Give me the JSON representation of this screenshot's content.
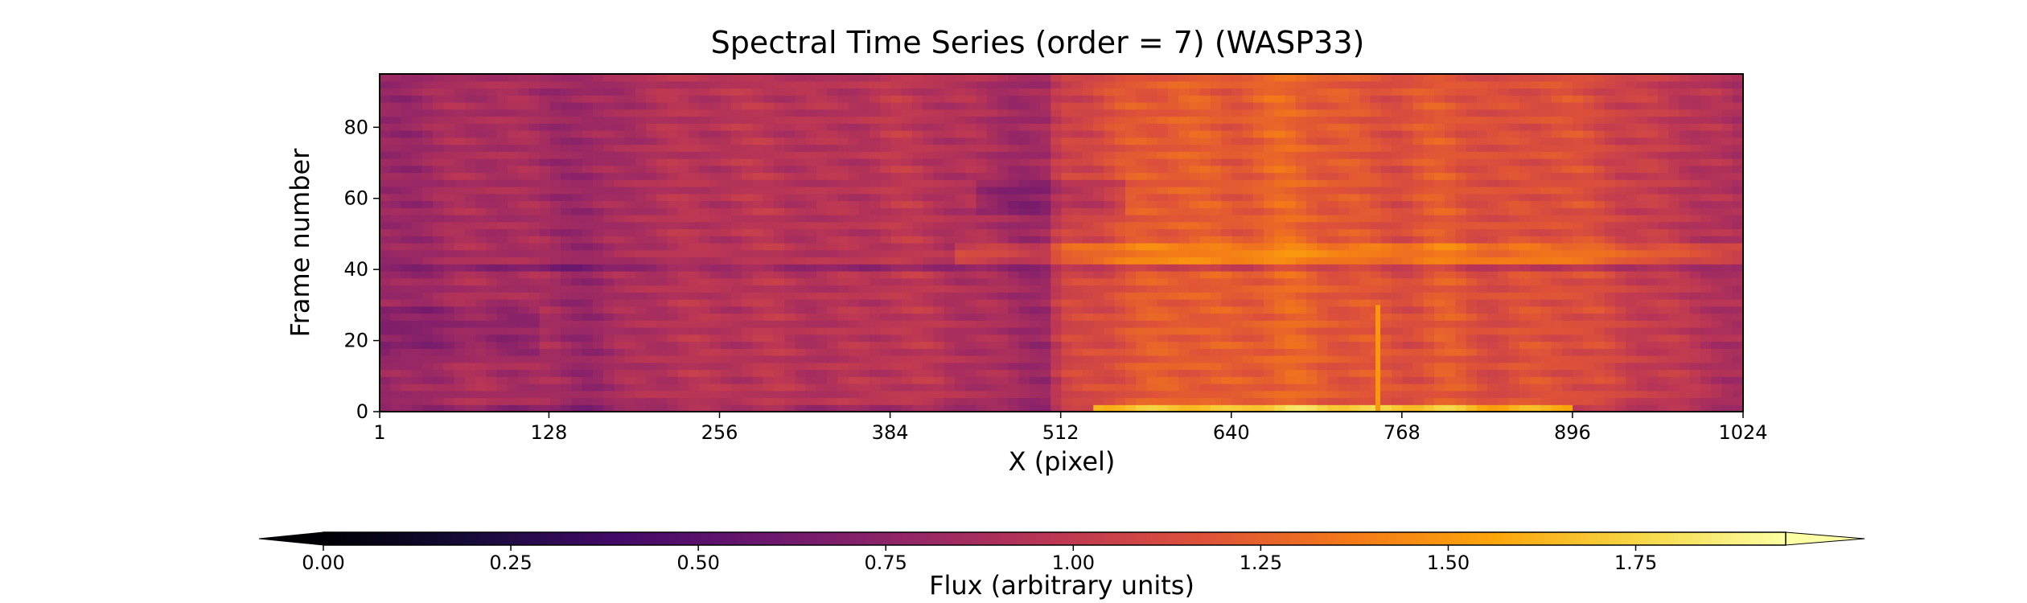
{
  "chart_data": {
    "type": "heatmap",
    "title": "Spectral Time Series (order = 7) (WASP33)",
    "xlabel": "X (pixel)",
    "ylabel": "Frame number",
    "xlim": [
      1,
      1024
    ],
    "ylim": [
      0,
      95
    ],
    "xticks": [
      1,
      128,
      256,
      384,
      512,
      640,
      768,
      896,
      1024
    ],
    "yticks": [
      0,
      20,
      40,
      60,
      80
    ],
    "grid": false,
    "colorbar": {
      "label": "Flux (arbitrary units)",
      "colormap": "inferno",
      "vmin": 0.0,
      "vmax": 1.95,
      "extend": "both",
      "orientation": "horizontal",
      "placement": "bottom",
      "ticks": [
        0.0,
        0.25,
        0.5,
        0.75,
        1.0,
        1.25,
        1.5,
        1.75
      ],
      "tick_labels": [
        "0.00",
        "0.25",
        "0.50",
        "0.75",
        "1.00",
        "1.25",
        "1.50",
        "1.75"
      ]
    },
    "column_profile": {
      "x": [
        1,
        40,
        80,
        120,
        160,
        200,
        256,
        300,
        340,
        384,
        420,
        460,
        500,
        512,
        560,
        600,
        640,
        680,
        720,
        768,
        800,
        840,
        880,
        920,
        960,
        1000,
        1024
      ],
      "flux": [
        0.78,
        0.85,
        0.9,
        0.86,
        0.8,
        0.92,
        0.95,
        0.96,
        0.92,
        0.98,
        0.95,
        0.88,
        0.82,
        1.05,
        1.18,
        1.25,
        1.2,
        1.28,
        1.2,
        1.15,
        1.22,
        1.12,
        1.18,
        1.1,
        1.0,
        0.95,
        0.85
      ]
    },
    "features": [
      {
        "label": "low-flux row band",
        "rows": [
          40,
          42
        ]
      },
      {
        "label": "high-flux row band",
        "rows": [
          42,
          47
        ]
      },
      {
        "label": "bright bottom rows",
        "rows": [
          0,
          2
        ]
      },
      {
        "label": "bright column",
        "x": 750,
        "rows": [
          0,
          30
        ]
      }
    ]
  }
}
